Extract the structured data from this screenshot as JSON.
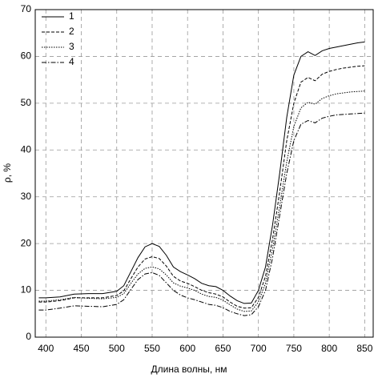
{
  "chart_data": {
    "type": "line",
    "xlabel": "Длина волны, нм",
    "ylabel": "ρ, %",
    "x": [
      390,
      400,
      420,
      440,
      460,
      480,
      500,
      510,
      520,
      530,
      540,
      550,
      560,
      570,
      580,
      590,
      600,
      610,
      620,
      630,
      640,
      650,
      660,
      670,
      680,
      690,
      700,
      710,
      720,
      730,
      740,
      750,
      760,
      770,
      780,
      790,
      800,
      810,
      820,
      830,
      840,
      850
    ],
    "series": [
      {
        "name": "1",
        "color": "#000000",
        "dash": "solid",
        "values": [
          8.4,
          8.4,
          8.6,
          9.2,
          9.3,
          9.3,
          9.8,
          11,
          14,
          17,
          19.3,
          20,
          19.4,
          17.5,
          15,
          14,
          13.3,
          12.5,
          11.5,
          11,
          10.8,
          10,
          8.8,
          7.8,
          7.2,
          7.3,
          10,
          15,
          24,
          35,
          47,
          56,
          60,
          61,
          60.2,
          61.2,
          61.7,
          62,
          62.3,
          62.6,
          62.9,
          63.1
        ]
      },
      {
        "name": "2",
        "color": "#000000",
        "dash": "dashed",
        "values": [
          7.5,
          7.5,
          7.8,
          8.4,
          8.4,
          8.4,
          8.9,
          9.9,
          12.5,
          15,
          16.7,
          17.2,
          16.8,
          15.2,
          13,
          12,
          11.5,
          10.8,
          10,
          9.5,
          9.2,
          8.6,
          7.5,
          6.6,
          6.2,
          6.3,
          8.5,
          13,
          21,
          31,
          42,
          50,
          54.5,
          55.5,
          54.8,
          56.2,
          56.8,
          57.2,
          57.5,
          57.7,
          57.9,
          58
        ]
      },
      {
        "name": "3",
        "color": "#000000",
        "dash": "dotted",
        "values": [
          7.7,
          7.7,
          8.0,
          8.5,
          8.3,
          8.2,
          8.5,
          9.3,
          11.5,
          13.5,
          14.7,
          15,
          14.6,
          13.3,
          11.6,
          10.9,
          10.5,
          10,
          9.2,
          8.7,
          8.5,
          7.9,
          6.9,
          6,
          5.5,
          5.6,
          7.5,
          11.5,
          19,
          28,
          37.5,
          45,
          49,
          50.2,
          49.8,
          51,
          51.6,
          52,
          52.2,
          52.4,
          52.5,
          52.6
        ]
      },
      {
        "name": "4",
        "color": "#000000",
        "dash": "dashdot",
        "values": [
          5.8,
          5.8,
          6.2,
          6.7,
          6.6,
          6.5,
          7.0,
          8,
          10.2,
          12.3,
          13.5,
          13.8,
          13.2,
          11.6,
          10,
          9,
          8.4,
          8,
          7.5,
          7,
          6.8,
          6.3,
          5.5,
          5,
          4.6,
          4.8,
          6.5,
          10,
          17,
          26,
          35,
          42,
          45.5,
          46.3,
          45.8,
          46.8,
          47.2,
          47.5,
          47.6,
          47.7,
          47.8,
          47.9
        ]
      }
    ],
    "xlim": [
      385,
      862
    ],
    "ylim": [
      0,
      70
    ],
    "xticks": [
      400,
      450,
      500,
      550,
      600,
      650,
      700,
      750,
      800,
      850
    ],
    "yticks": [
      0,
      10,
      20,
      30,
      40,
      50,
      60,
      70
    ],
    "grid": true,
    "legend": "upper left"
  }
}
